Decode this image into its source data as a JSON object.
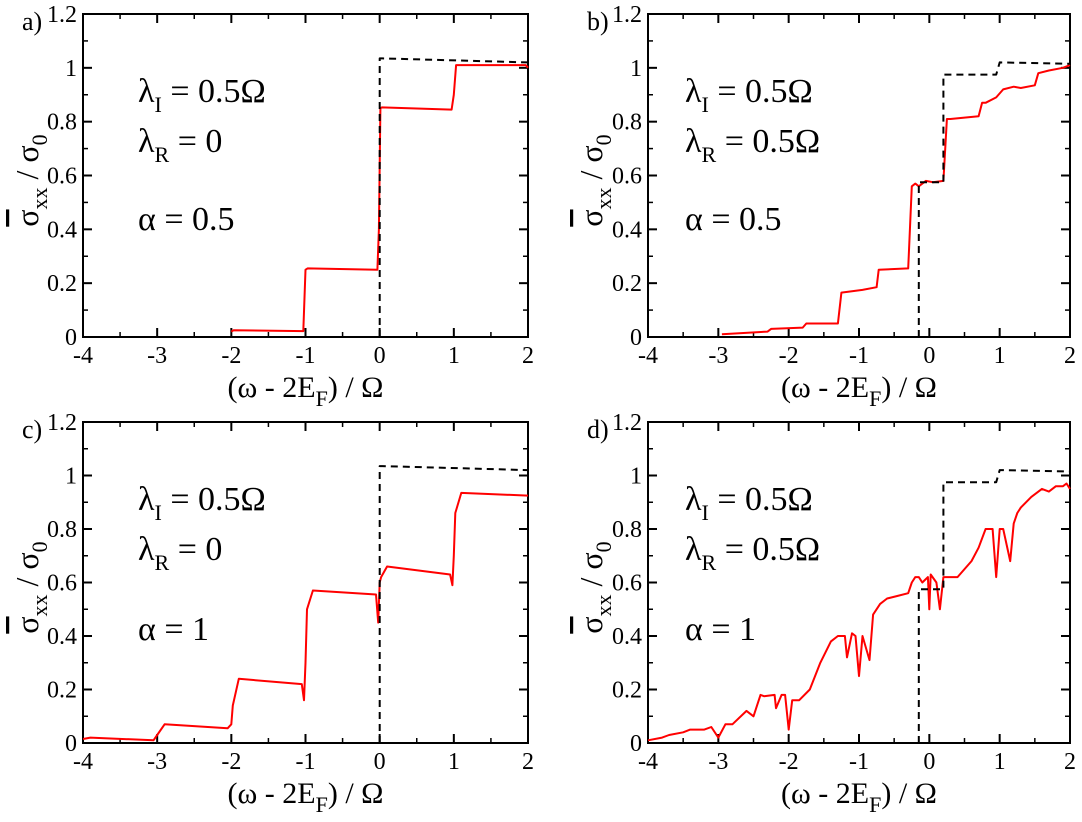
{
  "chart_data": [
    {
      "type": "line",
      "panel_label": "a)",
      "xlabel_parts": [
        "(ω - 2E",
        "F",
        ") / Ω"
      ],
      "ylabel_parts": [
        "σ",
        "xx",
        " / σ",
        "0"
      ],
      "xlim": [
        -4,
        2
      ],
      "ylim": [
        0,
        1.2
      ],
      "xticks": [
        "-4",
        "-3",
        "-2",
        "-1",
        "0",
        "1",
        "2"
      ],
      "yticks": [
        "0",
        "0.2",
        "0.4",
        "0.6",
        "0.8",
        "1",
        "1.2"
      ],
      "annotations": [
        {
          "sym": "λ",
          "sub": "I",
          "rest": " = 0.5Ω"
        },
        {
          "sym": "λ",
          "sub": "R",
          "rest": " = 0"
        },
        {
          "sym": "α",
          "sub": "",
          "rest": " = 0.5"
        }
      ],
      "series": [
        {
          "name": "red",
          "color": "#ff0000",
          "style": "solid",
          "x": [
            -2,
            -1.97,
            -1.03,
            -1.0,
            -0.97,
            -0.03,
            -0.01,
            0.01,
            0.03,
            0.97,
            1.0,
            1.03,
            1.97,
            2.0
          ],
          "y": [
            0.02,
            0.025,
            0.022,
            0.25,
            0.255,
            0.25,
            0.4,
            0.85,
            0.853,
            0.845,
            0.9,
            1.01,
            1.01,
            1.0
          ]
        },
        {
          "name": "black",
          "color": "#000000",
          "style": "dashed",
          "x": [
            0,
            0,
            0.04,
            2
          ],
          "y": [
            0,
            1.035,
            1.035,
            1.02
          ]
        }
      ]
    },
    {
      "type": "line",
      "panel_label": "b)",
      "xlabel_parts": [
        "(ω - 2E",
        "F",
        ") / Ω"
      ],
      "ylabel_parts": [
        "σ",
        "xx",
        " / σ",
        "0"
      ],
      "xlim": [
        -4,
        2
      ],
      "ylim": [
        0,
        1.2
      ],
      "xticks": [
        "-4",
        "-3",
        "-2",
        "-1",
        "0",
        "1",
        "2"
      ],
      "yticks": [
        "0",
        "0.2",
        "0.4",
        "0.6",
        "0.8",
        "1",
        "1.2"
      ],
      "annotations": [
        {
          "sym": "λ",
          "sub": "I",
          "rest": " = 0.5Ω"
        },
        {
          "sym": "λ",
          "sub": "R",
          "rest": " = 0.5Ω"
        },
        {
          "sym": "α",
          "sub": "",
          "rest": " = 0.5"
        }
      ],
      "series": [
        {
          "name": "red",
          "color": "#ff0000",
          "style": "solid",
          "x": [
            -2.95,
            -2.3,
            -2.25,
            -1.8,
            -1.75,
            -1.3,
            -1.25,
            -0.95,
            -0.75,
            -0.72,
            -0.3,
            -0.25,
            -0.2,
            -0.15,
            -0.05,
            0.05,
            0.2,
            0.25,
            0.3,
            0.5,
            0.7,
            0.75,
            0.8,
            0.95,
            1.05,
            1.2,
            1.3,
            1.5,
            1.55,
            1.7,
            1.9,
            2.0
          ],
          "y": [
            0.01,
            0.02,
            0.03,
            0.035,
            0.05,
            0.05,
            0.165,
            0.175,
            0.185,
            0.25,
            0.255,
            0.56,
            0.57,
            0.56,
            0.58,
            0.575,
            0.58,
            0.81,
            0.81,
            0.815,
            0.82,
            0.87,
            0.87,
            0.89,
            0.92,
            0.93,
            0.925,
            0.935,
            0.98,
            0.99,
            1.0,
            1.01
          ]
        },
        {
          "name": "black",
          "color": "#000000",
          "style": "dashed",
          "x": [
            -0.15,
            -0.15,
            0.2,
            0.2,
            0.95,
            1.0,
            2.0
          ],
          "y": [
            0,
            0.575,
            0.575,
            0.975,
            0.975,
            1.02,
            1.015
          ]
        }
      ]
    },
    {
      "type": "line",
      "panel_label": "c)",
      "xlabel_parts": [
        "(ω - 2E",
        "F",
        ") / Ω"
      ],
      "ylabel_parts": [
        "σ",
        "xx",
        " / σ",
        "0"
      ],
      "xlim": [
        -4,
        2
      ],
      "ylim": [
        0,
        1.2
      ],
      "xticks": [
        "-4",
        "-3",
        "-2",
        "-1",
        "0",
        "1",
        "2"
      ],
      "yticks": [
        "0",
        "0.2",
        "0.4",
        "0.6",
        "0.8",
        "1",
        "1.2"
      ],
      "annotations": [
        {
          "sym": "λ",
          "sub": "I",
          "rest": " = 0.5Ω"
        },
        {
          "sym": "λ",
          "sub": "R",
          "rest": " = 0"
        },
        {
          "sym": "α",
          "sub": "",
          "rest": " = 1"
        }
      ],
      "series": [
        {
          "name": "red",
          "color": "#ff0000",
          "style": "solid",
          "x": [
            -4,
            -3.9,
            -3.05,
            -3.0,
            -2.9,
            -2.05,
            -2.0,
            -1.98,
            -1.9,
            -1.05,
            -1.02,
            -1.0,
            -0.98,
            -0.9,
            -0.05,
            -0.02,
            0.0,
            0.02,
            0.1,
            0.95,
            0.98,
            1.0,
            1.02,
            1.1,
            2.0
          ],
          "y": [
            0.015,
            0.02,
            0.01,
            0.03,
            0.07,
            0.055,
            0.07,
            0.14,
            0.24,
            0.22,
            0.16,
            0.3,
            0.5,
            0.57,
            0.555,
            0.45,
            0.6,
            0.62,
            0.66,
            0.63,
            0.59,
            0.7,
            0.86,
            0.935,
            0.925
          ]
        },
        {
          "name": "black",
          "color": "#000000",
          "style": "dashed",
          "x": [
            0,
            0,
            0.04,
            2
          ],
          "y": [
            0,
            1.035,
            1.035,
            1.02
          ]
        }
      ]
    },
    {
      "type": "line",
      "panel_label": "d)",
      "xlabel_parts": [
        "(ω - 2E",
        "F",
        ") / Ω"
      ],
      "ylabel_parts": [
        "σ",
        "xx",
        " / σ",
        "0"
      ],
      "xlim": [
        -4,
        2
      ],
      "ylim": [
        0,
        1.2
      ],
      "xticks": [
        "-4",
        "-3",
        "-2",
        "-1",
        "0",
        "1",
        "2"
      ],
      "yticks": [
        "0",
        "0.2",
        "0.4",
        "0.6",
        "0.8",
        "1",
        "1.2"
      ],
      "annotations": [
        {
          "sym": "λ",
          "sub": "I",
          "rest": " = 0.5Ω"
        },
        {
          "sym": "λ",
          "sub": "R",
          "rest": " = 0.5Ω"
        },
        {
          "sym": "α",
          "sub": "",
          "rest": " = 1"
        }
      ],
      "series": [
        {
          "name": "red",
          "color": "#ff0000",
          "style": "solid",
          "x": [
            -4,
            -3.8,
            -3.7,
            -3.5,
            -3.4,
            -3.2,
            -3.1,
            -3.0,
            -2.9,
            -2.8,
            -2.6,
            -2.5,
            -2.4,
            -2.35,
            -2.2,
            -2.18,
            -2.1,
            -2.05,
            -2.0,
            -1.95,
            -1.85,
            -1.7,
            -1.55,
            -1.4,
            -1.3,
            -1.2,
            -1.17,
            -1.1,
            -1.05,
            -1.0,
            -0.95,
            -0.85,
            -0.8,
            -0.7,
            -0.6,
            -0.45,
            -0.3,
            -0.25,
            -0.2,
            -0.15,
            -0.1,
            -0.02,
            0.0,
            0.02,
            0.1,
            0.15,
            0.2,
            0.4,
            0.6,
            0.7,
            0.8,
            0.9,
            0.95,
            1.0,
            1.05,
            1.15,
            1.2,
            1.25,
            1.3,
            1.45,
            1.6,
            1.7,
            1.8,
            1.9,
            1.95,
            2.0
          ],
          "y": [
            0.01,
            0.02,
            0.03,
            0.04,
            0.05,
            0.05,
            0.06,
            0.02,
            0.07,
            0.07,
            0.12,
            0.1,
            0.18,
            0.175,
            0.18,
            0.13,
            0.18,
            0.18,
            0.05,
            0.16,
            0.16,
            0.2,
            0.3,
            0.38,
            0.4,
            0.4,
            0.32,
            0.41,
            0.4,
            0.25,
            0.4,
            0.31,
            0.48,
            0.52,
            0.54,
            0.55,
            0.56,
            0.6,
            0.62,
            0.62,
            0.6,
            0.62,
            0.5,
            0.63,
            0.6,
            0.5,
            0.62,
            0.62,
            0.68,
            0.73,
            0.8,
            0.8,
            0.62,
            0.8,
            0.8,
            0.68,
            0.82,
            0.86,
            0.88,
            0.92,
            0.95,
            0.94,
            0.96,
            0.96,
            0.97,
            0.95
          ]
        },
        {
          "name": "black",
          "color": "#000000",
          "style": "dashed",
          "x": [
            -0.15,
            -0.15,
            0.2,
            0.2,
            0.95,
            1.0,
            2.0
          ],
          "y": [
            0,
            0.575,
            0.575,
            0.975,
            0.975,
            1.02,
            1.015
          ]
        }
      ]
    }
  ]
}
